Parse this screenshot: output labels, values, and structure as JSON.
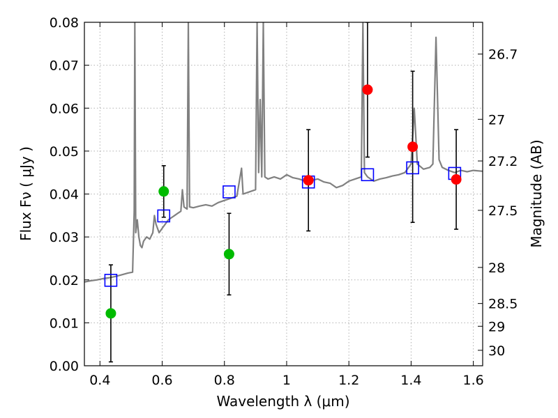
{
  "chart_data": {
    "type": "scatter",
    "xlabel": "Wavelength  λ (μm)",
    "ylabel": "Flux  Fν  ( μJy )",
    "ylabel_right": "Magnitude (AB)",
    "xlim": [
      0.35,
      1.63
    ],
    "ylim": [
      0.0,
      0.08
    ],
    "grid": true,
    "x_ticks": [
      0.4,
      0.6,
      0.8,
      1.0,
      1.2,
      1.4,
      1.6
    ],
    "x_tick_labels": [
      "0.4",
      "0.6",
      "0.8",
      "1",
      "1.2",
      "1.4",
      "1.6"
    ],
    "y_ticks": [
      0.0,
      0.01,
      0.02,
      0.03,
      0.04,
      0.05,
      0.06,
      0.07,
      0.08
    ],
    "y_tick_labels": [
      "0.00",
      "0.01",
      "0.02",
      "0.03",
      "0.04",
      "0.05",
      "0.06",
      "0.07",
      "0.08"
    ],
    "right_ticks": [
      {
        "flux": 0.0726,
        "label": "26.7"
      },
      {
        "flux": 0.0574,
        "label": "27"
      },
      {
        "flux": 0.0477,
        "label": "27.2"
      },
      {
        "flux": 0.0362,
        "label": "27.5"
      },
      {
        "flux": 0.0229,
        "label": "28"
      },
      {
        "flux": 0.0145,
        "label": "28.5"
      },
      {
        "flux": 0.0092,
        "label": "29"
      },
      {
        "flux": 0.0036,
        "label": "30"
      }
    ],
    "colors": {
      "spectrum": "#808080",
      "model": "#0000ff",
      "green_points": "#00bb00",
      "red_points": "#ff0000",
      "grid": "#b0b0b0"
    },
    "series": [
      {
        "kind": "spectrum",
        "points": [
          [
            0.35,
            0.0195
          ],
          [
            0.37,
            0.0198
          ],
          [
            0.39,
            0.02
          ],
          [
            0.41,
            0.0203
          ],
          [
            0.43,
            0.0205
          ],
          [
            0.45,
            0.0208
          ],
          [
            0.47,
            0.0212
          ],
          [
            0.49,
            0.0216
          ],
          [
            0.505,
            0.0218
          ],
          [
            0.51,
            0.036
          ],
          [
            0.512,
            0.08
          ],
          [
            0.515,
            0.031
          ],
          [
            0.52,
            0.034
          ],
          [
            0.525,
            0.03
          ],
          [
            0.53,
            0.028
          ],
          [
            0.535,
            0.0275
          ],
          [
            0.54,
            0.029
          ],
          [
            0.55,
            0.03
          ],
          [
            0.56,
            0.0295
          ],
          [
            0.57,
            0.031
          ],
          [
            0.575,
            0.035
          ],
          [
            0.58,
            0.033
          ],
          [
            0.59,
            0.031
          ],
          [
            0.6,
            0.032
          ],
          [
            0.61,
            0.033
          ],
          [
            0.62,
            0.034
          ],
          [
            0.63,
            0.0345
          ],
          [
            0.64,
            0.035
          ],
          [
            0.65,
            0.0355
          ],
          [
            0.66,
            0.036
          ],
          [
            0.665,
            0.041
          ],
          [
            0.67,
            0.037
          ],
          [
            0.68,
            0.0365
          ],
          [
            0.684,
            0.08
          ],
          [
            0.688,
            0.037
          ],
          [
            0.7,
            0.0368
          ],
          [
            0.72,
            0.0372
          ],
          [
            0.74,
            0.0375
          ],
          [
            0.76,
            0.0372
          ],
          [
            0.78,
            0.038
          ],
          [
            0.8,
            0.0385
          ],
          [
            0.82,
            0.039
          ],
          [
            0.84,
            0.0395
          ],
          [
            0.855,
            0.046
          ],
          [
            0.86,
            0.04
          ],
          [
            0.88,
            0.0405
          ],
          [
            0.9,
            0.041
          ],
          [
            0.905,
            0.08
          ],
          [
            0.91,
            0.045
          ],
          [
            0.915,
            0.062
          ],
          [
            0.92,
            0.044
          ],
          [
            0.925,
            0.08
          ],
          [
            0.93,
            0.044
          ],
          [
            0.94,
            0.0435
          ],
          [
            0.96,
            0.044
          ],
          [
            0.98,
            0.0435
          ],
          [
            0.99,
            0.044
          ],
          [
            1.0,
            0.0445
          ],
          [
            1.02,
            0.0438
          ],
          [
            1.04,
            0.0435
          ],
          [
            1.06,
            0.043
          ],
          [
            1.08,
            0.0432
          ],
          [
            1.1,
            0.0435
          ],
          [
            1.12,
            0.0428
          ],
          [
            1.14,
            0.0425
          ],
          [
            1.16,
            0.0415
          ],
          [
            1.18,
            0.042
          ],
          [
            1.2,
            0.043
          ],
          [
            1.22,
            0.0435
          ],
          [
            1.24,
            0.044
          ],
          [
            1.245,
            0.08
          ],
          [
            1.25,
            0.045
          ],
          [
            1.26,
            0.044
          ],
          [
            1.28,
            0.043
          ],
          [
            1.3,
            0.0435
          ],
          [
            1.32,
            0.0438
          ],
          [
            1.34,
            0.0442
          ],
          [
            1.36,
            0.0445
          ],
          [
            1.38,
            0.045
          ],
          [
            1.4,
            0.047
          ],
          [
            1.41,
            0.06
          ],
          [
            1.42,
            0.047
          ],
          [
            1.44,
            0.0458
          ],
          [
            1.46,
            0.0462
          ],
          [
            1.47,
            0.047
          ],
          [
            1.48,
            0.0765
          ],
          [
            1.49,
            0.048
          ],
          [
            1.5,
            0.0462
          ],
          [
            1.52,
            0.0455
          ],
          [
            1.54,
            0.045
          ],
          [
            1.56,
            0.0455
          ],
          [
            1.58,
            0.0452
          ],
          [
            1.6,
            0.0455
          ],
          [
            1.63,
            0.0453
          ]
        ]
      },
      {
        "kind": "model",
        "marker": "open-square",
        "points": [
          [
            0.435,
            0.0199
          ],
          [
            0.605,
            0.0349
          ],
          [
            0.815,
            0.0405
          ],
          [
            1.07,
            0.0428
          ],
          [
            1.26,
            0.0445
          ],
          [
            1.405,
            0.0461
          ],
          [
            1.54,
            0.0448
          ]
        ]
      },
      {
        "kind": "green",
        "marker": "filled-circle",
        "points": [
          {
            "x": 0.435,
            "y": 0.0122,
            "err": 0.0113
          },
          {
            "x": 0.605,
            "y": 0.0406,
            "err": 0.006
          },
          {
            "x": 0.815,
            "y": 0.026,
            "err": 0.0095
          }
        ]
      },
      {
        "kind": "red",
        "marker": "filled-circle",
        "points": [
          {
            "x": 1.07,
            "y": 0.0432,
            "err": 0.0118
          },
          {
            "x": 1.26,
            "y": 0.0643,
            "err": 0.0157
          },
          {
            "x": 1.405,
            "y": 0.051,
            "err": 0.0176
          },
          {
            "x": 1.545,
            "y": 0.0434,
            "err": 0.0116
          }
        ]
      }
    ]
  }
}
